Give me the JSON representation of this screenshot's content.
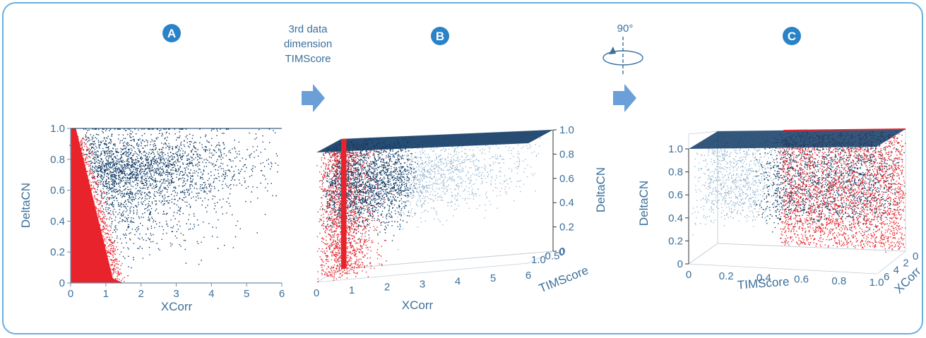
{
  "colors": {
    "frame": "#6ab0dd",
    "badge": "#2a83c6",
    "arrow": "#6a9fd8",
    "text": "#3b6f9a",
    "series_blue": "#0f3a64",
    "series_red": "#e8232c"
  },
  "panels": [
    {
      "badge": "A"
    },
    {
      "badge": "B"
    },
    {
      "badge": "C"
    }
  ],
  "annotations": {
    "transition_ab": [
      "3rd data",
      "dimension",
      "TIMScore"
    ],
    "rotation_label": "90°"
  },
  "chart_data": [
    {
      "type": "scatter",
      "panel": "A",
      "xlabel": "XCorr",
      "ylabel": "DeltaCN",
      "xlim": [
        0,
        6
      ],
      "ylim": [
        0,
        1
      ],
      "xticks": [
        "0",
        "1",
        "2",
        "3",
        "4",
        "5",
        "6"
      ],
      "yticks": [
        "0",
        "0.2",
        "0.4",
        "0.6",
        "0.8",
        "1.0"
      ],
      "series_colors": [
        "#0f3a64",
        "#e8232c"
      ]
    },
    {
      "type": "scatter",
      "panel": "B",
      "projection": "3d",
      "xlabel": "XCorr",
      "ylabel": "DeltaCN",
      "zlabel": "TIMScore",
      "xlim": [
        0,
        6
      ],
      "ylim": [
        0,
        1
      ],
      "zlim": [
        0,
        1
      ],
      "xticks": [
        "0",
        "1",
        "2",
        "3",
        "4",
        "5",
        "6"
      ],
      "yticks": [
        "0",
        "0.2",
        "0.4",
        "0.6",
        "0.8",
        "1.0"
      ],
      "zticks": [
        "0",
        "0.5",
        "1.0"
      ],
      "series_colors": [
        "#0f3a64",
        "#e8232c"
      ]
    },
    {
      "type": "scatter",
      "panel": "C",
      "projection": "3d",
      "rotation_deg": 90,
      "xlabel": "TIMScore",
      "ylabel": "DeltaCN",
      "zlabel": "XCorr",
      "xlim": [
        0,
        1
      ],
      "ylim": [
        0,
        1
      ],
      "zlim": [
        0,
        6
      ],
      "xticks": [
        "0",
        "0.2",
        "0.4",
        "0.6",
        "0.8",
        "1.0"
      ],
      "yticks": [
        "0",
        "0.2",
        "0.4",
        "0.6",
        "0.8",
        "1.0"
      ],
      "zticks": [
        "0",
        "2",
        "4",
        "6"
      ],
      "series_colors": [
        "#0f3a64",
        "#e8232c"
      ]
    }
  ]
}
